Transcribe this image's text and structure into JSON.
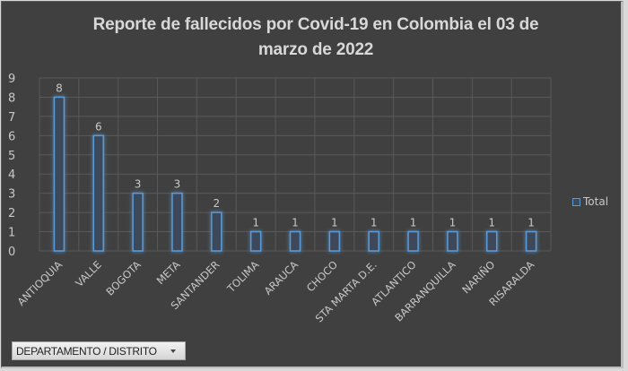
{
  "chart_data": {
    "type": "bar",
    "title": "Reporte de fallecidos por Covid-19 en Colombia el 03 de marzo de 2022",
    "title_lines": [
      "Reporte de fallecidos por Covid-19 en Colombia el 03 de",
      "marzo de 2022"
    ],
    "xlabel": "",
    "ylabel": "",
    "categories": [
      "ANTIOQUIA",
      "VALLE",
      "BOGOTA",
      "META",
      "SANTANDER",
      "TOLIMA",
      "ARAUCA",
      "CHOCO",
      "STA MARTA D.E.",
      "ATLANTICO",
      "BARRANQUILLA",
      "NARIÑO",
      "RISARALDA"
    ],
    "series": [
      {
        "name": "Total",
        "values": [
          8,
          6,
          3,
          3,
          2,
          1,
          1,
          1,
          1,
          1,
          1,
          1,
          1
        ],
        "color": "#5b9bd5"
      }
    ],
    "ylim": [
      0,
      9
    ],
    "yticks": [
      0,
      1,
      2,
      3,
      4,
      5,
      6,
      7,
      8,
      9
    ],
    "data_labels": true,
    "grid": true,
    "legend_position": "right"
  },
  "legend": {
    "label": "Total"
  },
  "field_button": {
    "label": "DEPARTAMENTO / DISTRITO",
    "icon": "dropdown-arrow-icon"
  },
  "colors": {
    "background": "#404040",
    "bar_outline": "#5b9bd5",
    "text": "#d8d8d8",
    "grid": "#595959"
  }
}
